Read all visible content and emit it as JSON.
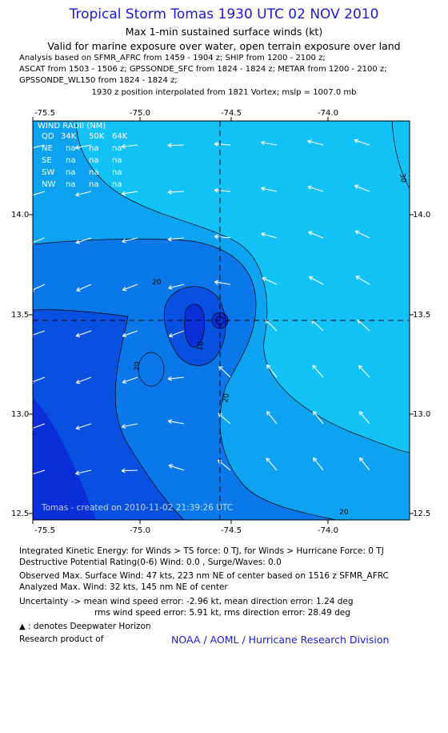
{
  "header": {
    "title": "Tropical Storm Tomas 1930 UTC 02 NOV 2010",
    "subtitle": "Max 1-min sustained surface winds (kt)",
    "validity": "Valid for marine exposure over water, open terrain exposure over land",
    "analysis_lines": [
      "Analysis based on SFMR_AFRC from 1459 - 1904 z; SHIP from 1200 - 2100 z;",
      "ASCAT from 1503 - 1506 z; GPSSONDE_SFC from 1824 - 1824 z; METAR from 1200 - 2100 z;",
      "GPSSONDE_WL150 from 1824 - 1824 z;"
    ],
    "center_note": "1930 z position interpolated from 1821 Vortex; mslp = 1007.0 mb"
  },
  "map": {
    "lon_ticks": [
      "-75.5",
      "-75.0",
      "-74.5",
      "-74.0"
    ],
    "lat_ticks": [
      "14.0",
      "13.5",
      "13.0",
      "12.5"
    ],
    "contour_labels": [
      "20",
      "10",
      "20",
      "20",
      "30",
      "20"
    ],
    "credit": "Tomas - created on 2010-11-02 21:39:26 UTC",
    "wind_radii": {
      "title": "WIND RADII (NM)",
      "columns": [
        "QD",
        "34K",
        "50K",
        "64K"
      ],
      "rows": [
        {
          "qd": "NE",
          "k34": "na",
          "k50": "na",
          "k64": "na"
        },
        {
          "qd": "SE",
          "k34": "na",
          "k50": "na",
          "k64": "na"
        },
        {
          "qd": "SW",
          "k34": "na",
          "k50": "na",
          "k64": "na"
        },
        {
          "qd": "NW",
          "k34": "na",
          "k50": "na",
          "k64": "na"
        }
      ]
    },
    "colors": {
      "band_30": "#12c2f6",
      "band_20_30": "#0da3f0",
      "band_10_20": "#0a78ea",
      "band_0_10": "#0850df",
      "band_core": "#0a2ed8",
      "vector": "#ffffff"
    }
  },
  "footer": {
    "ike": "Integrated Kinetic Energy:  for Winds > TS force: 0 TJ,  for Winds > Hurricane Force: 0 TJ",
    "dpr": "Destructive Potential Rating(0-6)   Wind: 0.0 , Surge/Waves: 0.0",
    "observed": "Observed Max. Surface Wind: 47 kts, 223 nm NE of center based on 1516 z SFMR_AFRC",
    "analyzed": "Analyzed Max. Wind: 32 kts, 145 nm NE of center",
    "uncertainty_1": "Uncertainty -> mean wind speed error:  -2.96 kt,   mean direction error: 1.24 deg",
    "uncertainty_2": "rms wind speed error: 5.91 kt,   rms direction error: 28.49 deg",
    "legend": ": denotes Deepwater Horizon",
    "research_label": "Research product of",
    "noaa": "NOAA / AOML / Hurricane Research Division"
  }
}
